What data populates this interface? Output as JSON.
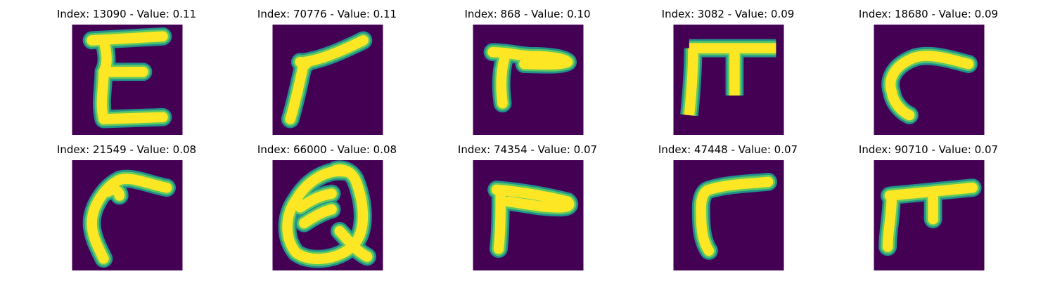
{
  "colors": {
    "background": "#440154",
    "edge": "#21918c",
    "mid": "#5ec962",
    "stroke": "#fde725"
  },
  "panels": [
    {
      "title": "Index: 13090 - Value: 0.11",
      "glyph": "E-shape"
    },
    {
      "title": "Index: 70776 - Value: 0.11",
      "glyph": "angled-stroke"
    },
    {
      "title": "Index: 868 - Value: 0.10",
      "glyph": "hook-stroke"
    },
    {
      "title": "Index: 3082 - Value: 0.09",
      "glyph": "pi-shape"
    },
    {
      "title": "Index: 18680 - Value: 0.09",
      "glyph": "curved-stroke"
    },
    {
      "title": "Index: 21549 - Value: 0.08",
      "glyph": "curved-stroke"
    },
    {
      "title": "Index: 66000 - Value: 0.08",
      "glyph": "Q-shape"
    },
    {
      "title": "Index: 74354 - Value: 0.07",
      "glyph": "hook-stroke"
    },
    {
      "title": "Index: 47448 - Value: 0.07",
      "glyph": "hook-stroke"
    },
    {
      "title": "Index: 90710 - Value: 0.07",
      "glyph": "pi-shape"
    }
  ]
}
